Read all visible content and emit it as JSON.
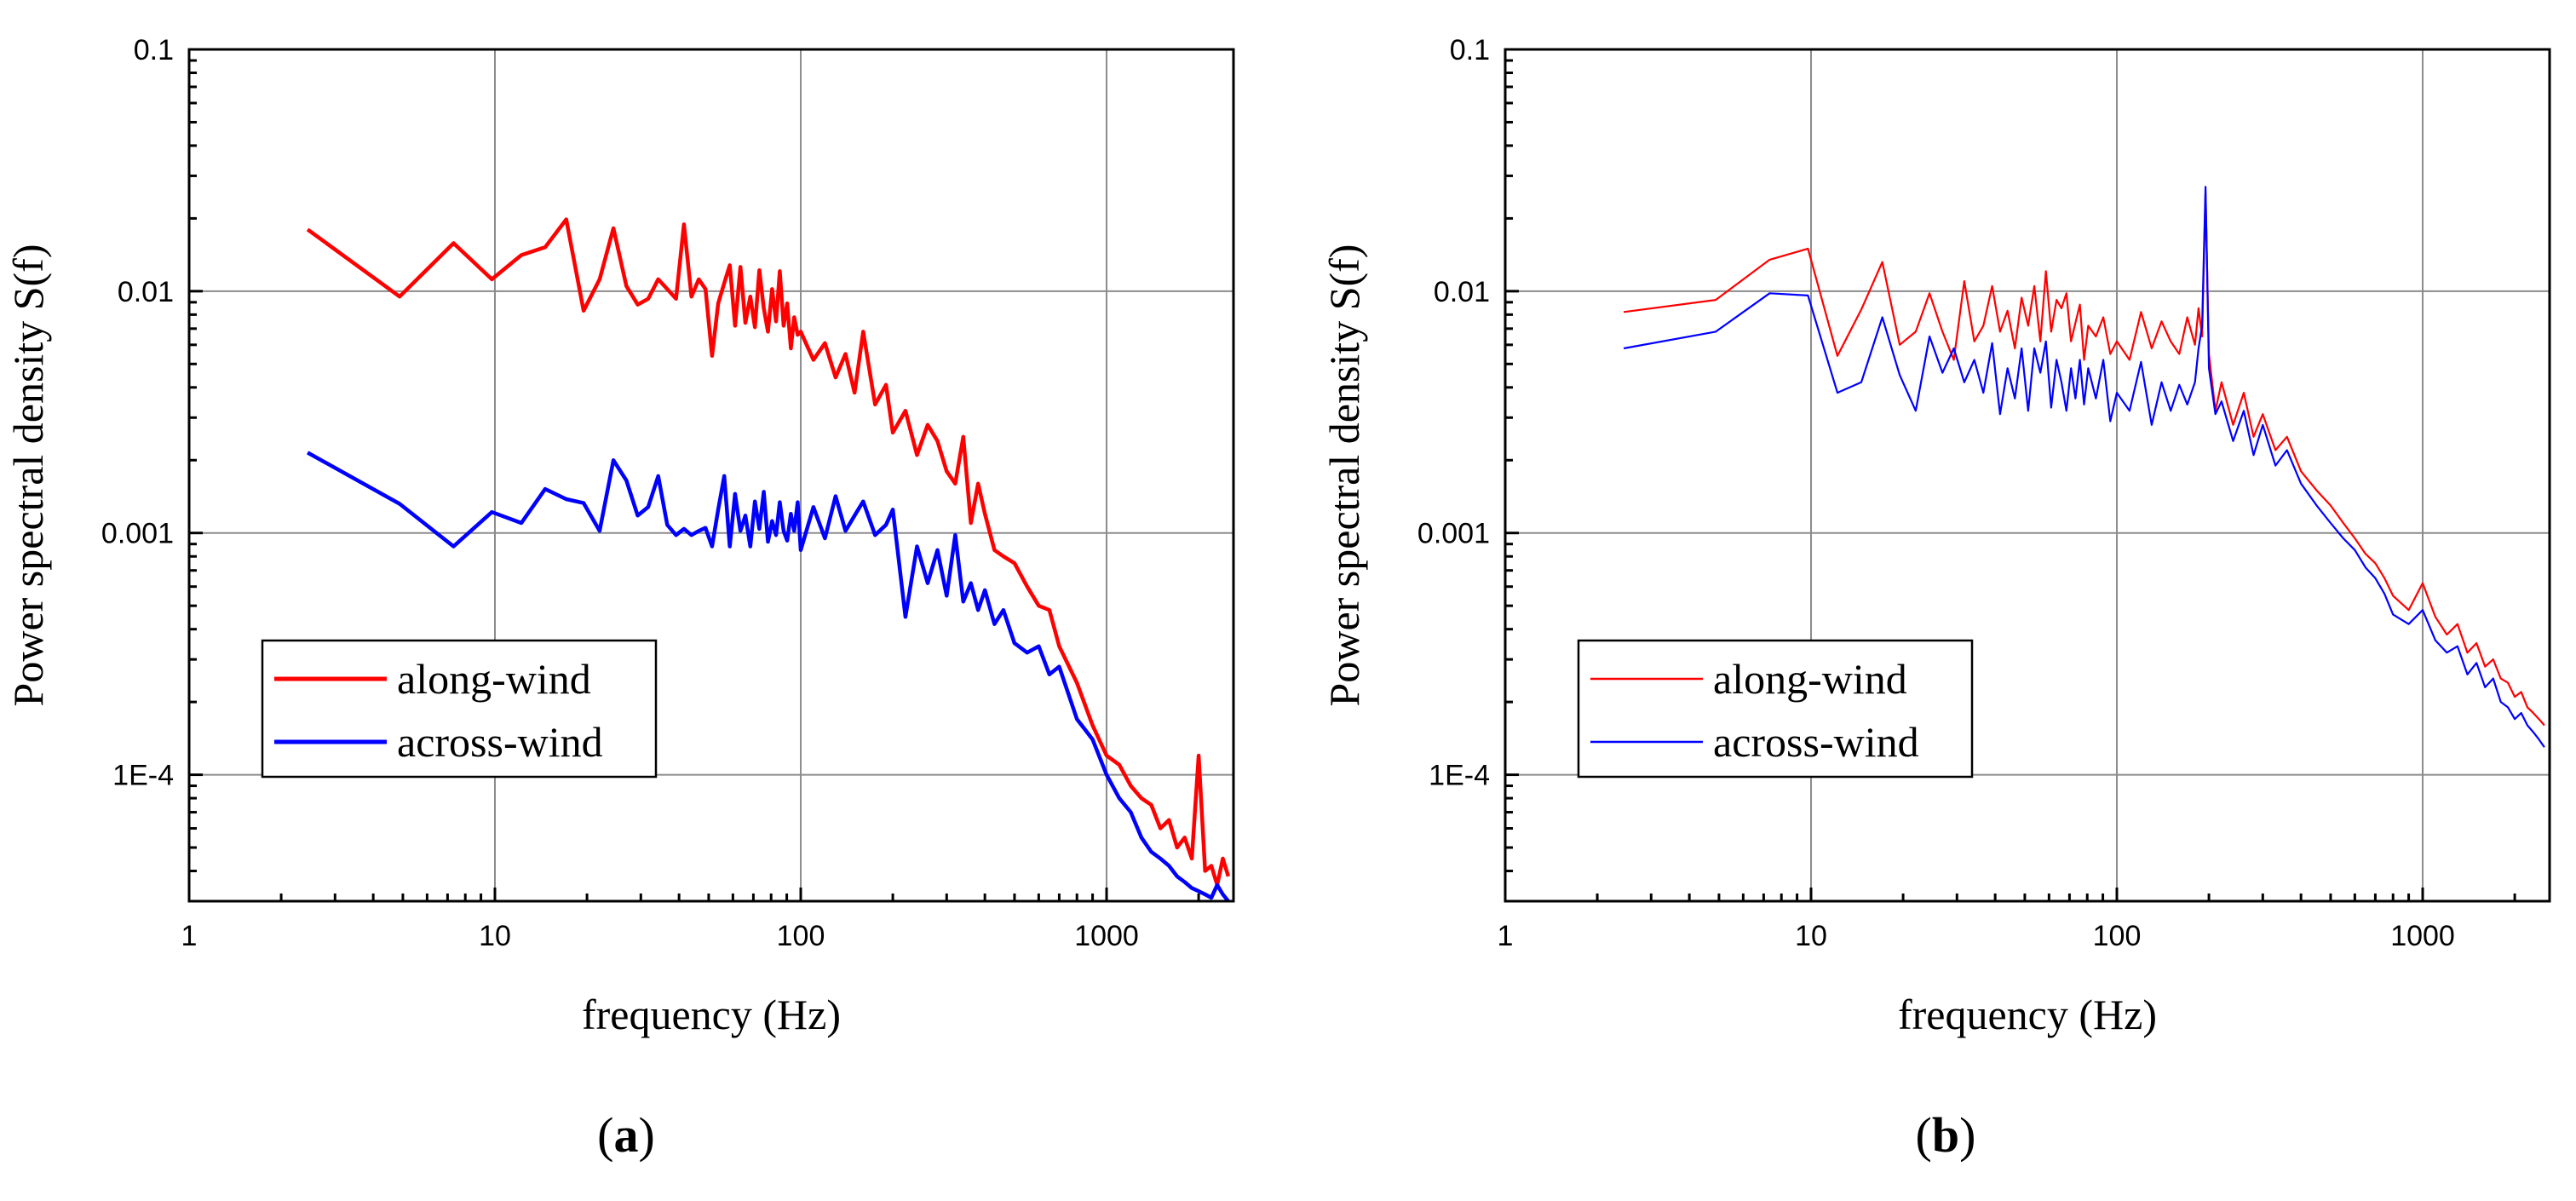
{
  "chart_data": [
    {
      "type": "line",
      "panel_label": "a",
      "xlabel": "frequency (Hz)",
      "ylabel": "Power spectral density S(f)",
      "xscale": "log",
      "yscale": "log",
      "xlim": [
        1,
        2600
      ],
      "ylim": [
        3e-05,
        0.1
      ],
      "x_ticks": [
        1,
        10,
        100,
        1000
      ],
      "x_tick_labels": [
        "1",
        "10",
        "100",
        "1000"
      ],
      "y_ticks": [
        0.0001,
        0.001,
        0.01,
        0.1
      ],
      "y_tick_labels": [
        "1E-4",
        "0.001",
        "0.01",
        "0.1"
      ],
      "grid": true,
      "legend_position": "lower-left",
      "line_width_class": "thick",
      "series": [
        {
          "name": "along-wind",
          "color": "#ff0000",
          "x": [
            2.44,
            4.88,
            7.32,
            9.77,
            12.2,
            14.6,
            17.1,
            19.5,
            22.0,
            24.4,
            26.9,
            29.3,
            31.7,
            34.2,
            36.6,
            39.1,
            41.5,
            43.9,
            46.4,
            48.8,
            51.3,
            53.7,
            56.2,
            58.6,
            61.0,
            63.5,
            65.9,
            68.4,
            70.8,
            73.2,
            75.7,
            78.1,
            80.6,
            83.0,
            85.4,
            87.9,
            90.3,
            92.8,
            95.2,
            97.7,
            100,
            110,
            120,
            130,
            140,
            150,
            160,
            175,
            190,
            200,
            220,
            240,
            260,
            280,
            300,
            320,
            340,
            360,
            380,
            400,
            430,
            460,
            500,
            550,
            600,
            650,
            700,
            800,
            900,
            1000,
            1100,
            1200,
            1300,
            1400,
            1500,
            1600,
            1700,
            1800,
            1900,
            2000,
            2100,
            2200,
            2300,
            2400,
            2500
          ],
          "values": [
            0.018,
            0.0095,
            0.0158,
            0.0112,
            0.0141,
            0.0152,
            0.0198,
            0.0083,
            0.0112,
            0.0182,
            0.0105,
            0.0088,
            0.0093,
            0.0112,
            0.0102,
            0.0093,
            0.0189,
            0.0095,
            0.0112,
            0.0102,
            0.0054,
            0.0089,
            0.0108,
            0.0128,
            0.0072,
            0.0126,
            0.0074,
            0.0095,
            0.0071,
            0.0122,
            0.0085,
            0.0068,
            0.0102,
            0.0075,
            0.0121,
            0.0072,
            0.0089,
            0.0058,
            0.0078,
            0.0066,
            0.0068,
            0.0052,
            0.0061,
            0.0044,
            0.0055,
            0.0038,
            0.0068,
            0.0034,
            0.0041,
            0.0026,
            0.0032,
            0.0021,
            0.0028,
            0.0024,
            0.0018,
            0.0016,
            0.0025,
            0.0011,
            0.0016,
            0.0012,
            0.00085,
            0.0008,
            0.00075,
            0.0006,
            0.0005,
            0.00048,
            0.00034,
            0.00024,
            0.00016,
            0.00012,
            0.00011,
            9e-05,
            8e-05,
            7.5e-05,
            6e-05,
            6.5e-05,
            5e-05,
            5.5e-05,
            4.5e-05,
            0.00012,
            4e-05,
            4.2e-05,
            3.5e-05,
            4.5e-05,
            3.8e-05
          ]
        },
        {
          "name": "across-wind",
          "color": "#0000ff",
          "x": [
            2.44,
            4.88,
            7.32,
            9.77,
            12.2,
            14.6,
            17.1,
            19.5,
            22.0,
            24.4,
            26.9,
            29.3,
            31.7,
            34.2,
            36.6,
            39.1,
            41.5,
            43.9,
            46.4,
            48.8,
            51.3,
            53.7,
            56.2,
            58.6,
            61.0,
            63.5,
            65.9,
            68.4,
            70.8,
            73.2,
            75.7,
            78.1,
            80.6,
            83.0,
            85.4,
            87.9,
            90.3,
            92.8,
            95.2,
            97.7,
            100,
            110,
            120,
            130,
            140,
            150,
            160,
            175,
            190,
            200,
            220,
            240,
            260,
            280,
            300,
            320,
            340,
            360,
            380,
            400,
            430,
            460,
            500,
            550,
            600,
            650,
            700,
            800,
            900,
            1000,
            1100,
            1200,
            1300,
            1400,
            1500,
            1600,
            1700,
            1800,
            1900,
            2000,
            2100,
            2200,
            2300,
            2400,
            2500
          ],
          "values": [
            0.00215,
            0.00132,
            0.00088,
            0.00122,
            0.0011,
            0.00152,
            0.00138,
            0.00133,
            0.00102,
            0.002,
            0.00165,
            0.00118,
            0.00128,
            0.00172,
            0.00108,
            0.00098,
            0.00104,
            0.00098,
            0.00102,
            0.00105,
            0.00088,
            0.00125,
            0.00172,
            0.00088,
            0.00145,
            0.00102,
            0.00118,
            0.00088,
            0.00135,
            0.00104,
            0.00148,
            0.00092,
            0.00112,
            0.00098,
            0.00134,
            0.00102,
            0.00093,
            0.0012,
            0.00102,
            0.00134,
            0.00085,
            0.00128,
            0.00095,
            0.00142,
            0.00102,
            0.00118,
            0.00135,
            0.00098,
            0.00108,
            0.00125,
            0.00045,
            0.00088,
            0.00062,
            0.00085,
            0.00055,
            0.00098,
            0.00052,
            0.00062,
            0.00048,
            0.00058,
            0.00042,
            0.00048,
            0.00035,
            0.00032,
            0.00034,
            0.00026,
            0.00028,
            0.00017,
            0.00014,
            0.0001,
            8e-05,
            7e-05,
            5.5e-05,
            4.8e-05,
            4.5e-05,
            4.2e-05,
            3.8e-05,
            3.6e-05,
            3.4e-05,
            3.3e-05,
            3.2e-05,
            3.1e-05,
            3.5e-05,
            3.2e-05,
            3e-05
          ]
        }
      ]
    },
    {
      "type": "line",
      "panel_label": "b",
      "xlabel": "frequency (Hz)",
      "ylabel": "Power spectral density S(f)",
      "xscale": "log",
      "yscale": "log",
      "xlim": [
        1,
        2600
      ],
      "ylim": [
        3e-05,
        0.1
      ],
      "x_ticks": [
        1,
        10,
        100,
        1000
      ],
      "x_tick_labels": [
        "1",
        "10",
        "100",
        "1000"
      ],
      "y_ticks": [
        0.0001,
        0.001,
        0.01,
        0.1
      ],
      "y_tick_labels": [
        "1E-4",
        "0.001",
        "0.01",
        "0.1"
      ],
      "grid": true,
      "legend_position": "lower-left",
      "line_width_class": "thin",
      "series": [
        {
          "name": "along-wind",
          "color": "#ff0000",
          "x": [
            2.44,
            4.88,
            7.32,
            9.77,
            12.2,
            14.6,
            17.1,
            19.5,
            22.0,
            24.4,
            26.9,
            29.3,
            31.7,
            34.2,
            36.6,
            39.1,
            41.5,
            43.9,
            46.4,
            48.8,
            51.3,
            53.7,
            56.2,
            58.6,
            61.0,
            63.5,
            65.9,
            68.4,
            70.8,
            73.2,
            75.7,
            78.1,
            80.6,
            85.4,
            90.3,
            95.2,
            100,
            110,
            120,
            130,
            140,
            150,
            160,
            170,
            180,
            185,
            190,
            195,
            200,
            210,
            220,
            240,
            260,
            280,
            300,
            330,
            360,
            400,
            450,
            500,
            550,
            600,
            650,
            700,
            750,
            800,
            900,
            1000,
            1100,
            1200,
            1300,
            1400,
            1500,
            1600,
            1700,
            1800,
            1900,
            2000,
            2100,
            2200,
            2300,
            2400,
            2500
          ],
          "values": [
            0.0082,
            0.0092,
            0.0135,
            0.015,
            0.0054,
            0.0084,
            0.0132,
            0.006,
            0.0068,
            0.0098,
            0.0068,
            0.0052,
            0.011,
            0.0062,
            0.0072,
            0.0105,
            0.0068,
            0.0083,
            0.0058,
            0.0094,
            0.0072,
            0.0105,
            0.0062,
            0.0121,
            0.0068,
            0.0092,
            0.0085,
            0.0098,
            0.0062,
            0.0074,
            0.0088,
            0.0052,
            0.0072,
            0.0065,
            0.0078,
            0.0055,
            0.0062,
            0.0052,
            0.0082,
            0.0058,
            0.0075,
            0.0062,
            0.0055,
            0.0078,
            0.006,
            0.0085,
            0.0065,
            0.0255,
            0.0055,
            0.0032,
            0.0042,
            0.0028,
            0.0038,
            0.0025,
            0.0031,
            0.0022,
            0.0025,
            0.0018,
            0.0015,
            0.0013,
            0.0011,
            0.00095,
            0.00082,
            0.00075,
            0.00065,
            0.00055,
            0.00048,
            0.00062,
            0.00045,
            0.00038,
            0.00042,
            0.00032,
            0.00035,
            0.00028,
            0.0003,
            0.00025,
            0.00024,
            0.00021,
            0.00022,
            0.00019,
            0.00018,
            0.00017,
            0.00016
          ]
        },
        {
          "name": "across-wind",
          "color": "#0000ff",
          "x": [
            2.44,
            4.88,
            7.32,
            9.77,
            12.2,
            14.6,
            17.1,
            19.5,
            22.0,
            24.4,
            26.9,
            29.3,
            31.7,
            34.2,
            36.6,
            39.1,
            41.5,
            43.9,
            46.4,
            48.8,
            51.3,
            53.7,
            56.2,
            58.6,
            61.0,
            63.5,
            65.9,
            68.4,
            70.8,
            73.2,
            75.7,
            78.1,
            80.6,
            85.4,
            90.3,
            95.2,
            100,
            110,
            120,
            130,
            140,
            150,
            160,
            170,
            180,
            185,
            190,
            195,
            200,
            210,
            220,
            240,
            260,
            280,
            300,
            330,
            360,
            400,
            450,
            500,
            550,
            600,
            650,
            700,
            750,
            800,
            900,
            1000,
            1100,
            1200,
            1300,
            1400,
            1500,
            1600,
            1700,
            1800,
            1900,
            2000,
            2100,
            2200,
            2300,
            2400,
            2500
          ],
          "values": [
            0.0058,
            0.0068,
            0.0098,
            0.0096,
            0.0038,
            0.0042,
            0.0078,
            0.0045,
            0.0032,
            0.0065,
            0.0046,
            0.0058,
            0.0042,
            0.0052,
            0.0038,
            0.0061,
            0.0031,
            0.0048,
            0.0036,
            0.0058,
            0.0032,
            0.0058,
            0.0046,
            0.0062,
            0.0033,
            0.0052,
            0.0042,
            0.0032,
            0.0048,
            0.0036,
            0.0052,
            0.0034,
            0.0048,
            0.0036,
            0.0052,
            0.0029,
            0.0038,
            0.0032,
            0.0051,
            0.0028,
            0.0042,
            0.0032,
            0.0041,
            0.0034,
            0.0042,
            0.0058,
            0.0072,
            0.027,
            0.0048,
            0.0031,
            0.0035,
            0.0024,
            0.0032,
            0.0021,
            0.0028,
            0.0019,
            0.0022,
            0.0016,
            0.0013,
            0.0011,
            0.00095,
            0.00085,
            0.00072,
            0.00065,
            0.00056,
            0.00046,
            0.00042,
            0.00048,
            0.00036,
            0.00032,
            0.00034,
            0.00026,
            0.00029,
            0.00023,
            0.00025,
            0.0002,
            0.00019,
            0.00017,
            0.00018,
            0.00016,
            0.00015,
            0.00014,
            0.00013
          ]
        }
      ]
    }
  ]
}
